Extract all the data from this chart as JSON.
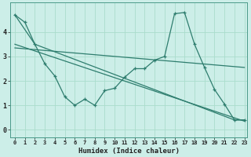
{
  "xlabel": "Humidex (Indice chaleur)",
  "background_color": "#cceee8",
  "line_color": "#2e7d6e",
  "grid_color": "#aaddcc",
  "x_min": -0.5,
  "x_max": 23.3,
  "y_min": -0.3,
  "y_max": 5.2,
  "yticks": [
    0,
    1,
    2,
    3,
    4
  ],
  "xticks": [
    0,
    1,
    2,
    3,
    4,
    5,
    6,
    7,
    8,
    9,
    10,
    11,
    12,
    13,
    14,
    15,
    16,
    17,
    18,
    19,
    20,
    21,
    22,
    23
  ],
  "line1_x": [
    0,
    1,
    2,
    3,
    4,
    5,
    6,
    7,
    8,
    9,
    10,
    11,
    12,
    13,
    14,
    15,
    16,
    17,
    18,
    19,
    20,
    21,
    22,
    23
  ],
  "line1_y": [
    4.7,
    4.4,
    3.5,
    2.7,
    2.2,
    1.35,
    1.0,
    1.25,
    1.0,
    1.6,
    1.7,
    2.15,
    2.5,
    2.5,
    2.85,
    3.0,
    4.75,
    4.8,
    3.5,
    2.55,
    1.65,
    1.05,
    0.4,
    0.4
  ],
  "line2_x": [
    0,
    2,
    22,
    23
  ],
  "line2_y": [
    4.7,
    3.5,
    0.4,
    0.4
  ],
  "line3_x": [
    0,
    23
  ],
  "line3_y": [
    3.5,
    0.35
  ],
  "line4_x": [
    0,
    23
  ],
  "line4_y": [
    3.35,
    2.55
  ]
}
